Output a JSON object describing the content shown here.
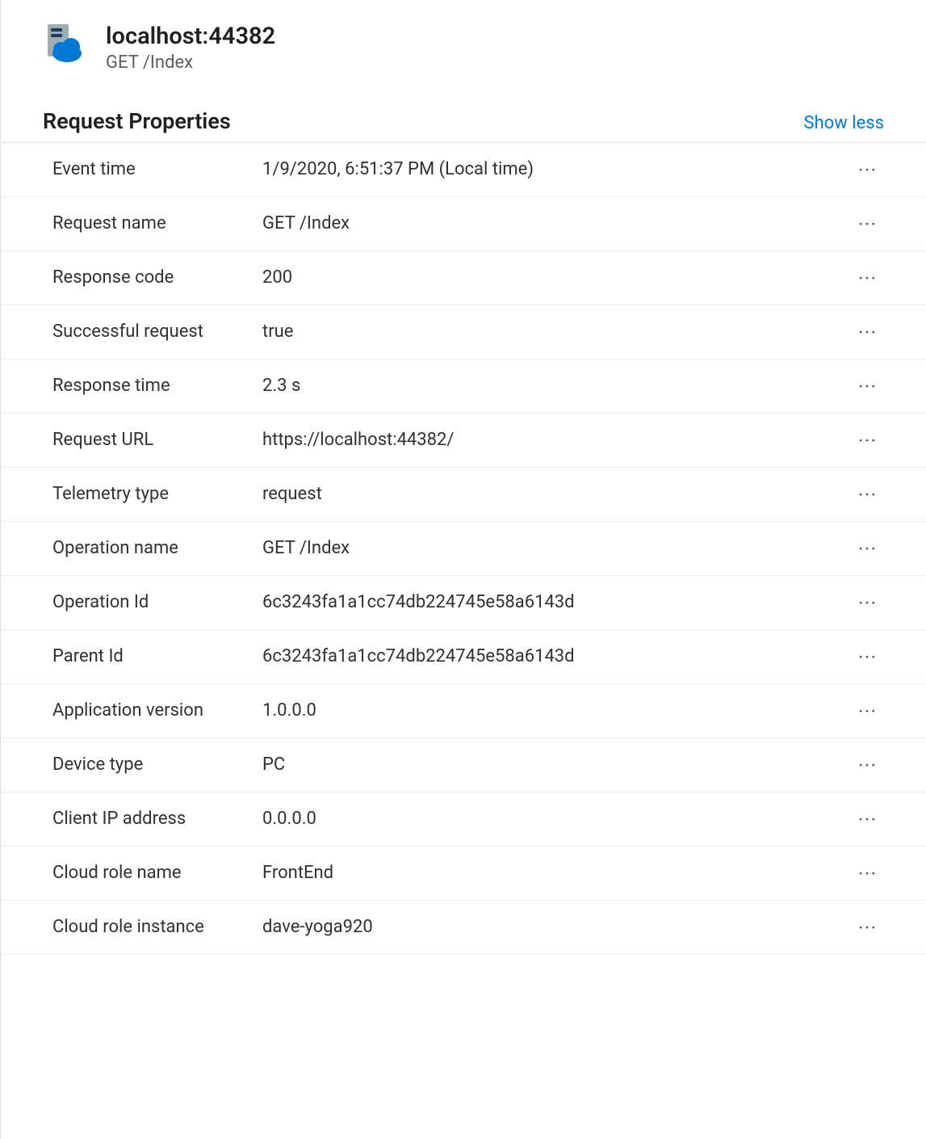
{
  "header": {
    "title": "localhost:44382",
    "subtitle": "GET /Index",
    "icon_colors": {
      "server_bg": "#a0aeb2",
      "server_slots": "#243a5e",
      "cloud": "#0078d4"
    }
  },
  "section": {
    "title": "Request Properties",
    "toggle_label": "Show less"
  },
  "properties": [
    {
      "label": "Event time",
      "value": "1/9/2020, 6:51:37 PM (Local time)"
    },
    {
      "label": "Request name",
      "value": "GET /Index"
    },
    {
      "label": "Response code",
      "value": "200"
    },
    {
      "label": "Successful request",
      "value": "true"
    },
    {
      "label": "Response time",
      "value": "2.3 s"
    },
    {
      "label": "Request URL",
      "value": "https://localhost:44382/"
    },
    {
      "label": "Telemetry type",
      "value": "request"
    },
    {
      "label": "Operation name",
      "value": "GET /Index"
    },
    {
      "label": "Operation Id",
      "value": "6c3243fa1a1cc74db224745e58a6143d"
    },
    {
      "label": "Parent Id",
      "value": "6c3243fa1a1cc74db224745e58a6143d"
    },
    {
      "label": "Application version",
      "value": "1.0.0.0"
    },
    {
      "label": "Device type",
      "value": "PC"
    },
    {
      "label": "Client IP address",
      "value": "0.0.0.0"
    },
    {
      "label": "Cloud role name",
      "value": "FrontEnd"
    },
    {
      "label": "Cloud role instance",
      "value": "dave-yoga920"
    }
  ],
  "colors": {
    "text_primary": "#201f1e",
    "text_secondary": "#605e5c",
    "link": "#0078d4",
    "border": "#e1dfdd",
    "row_border": "#ededed",
    "background": "#ffffff"
  }
}
